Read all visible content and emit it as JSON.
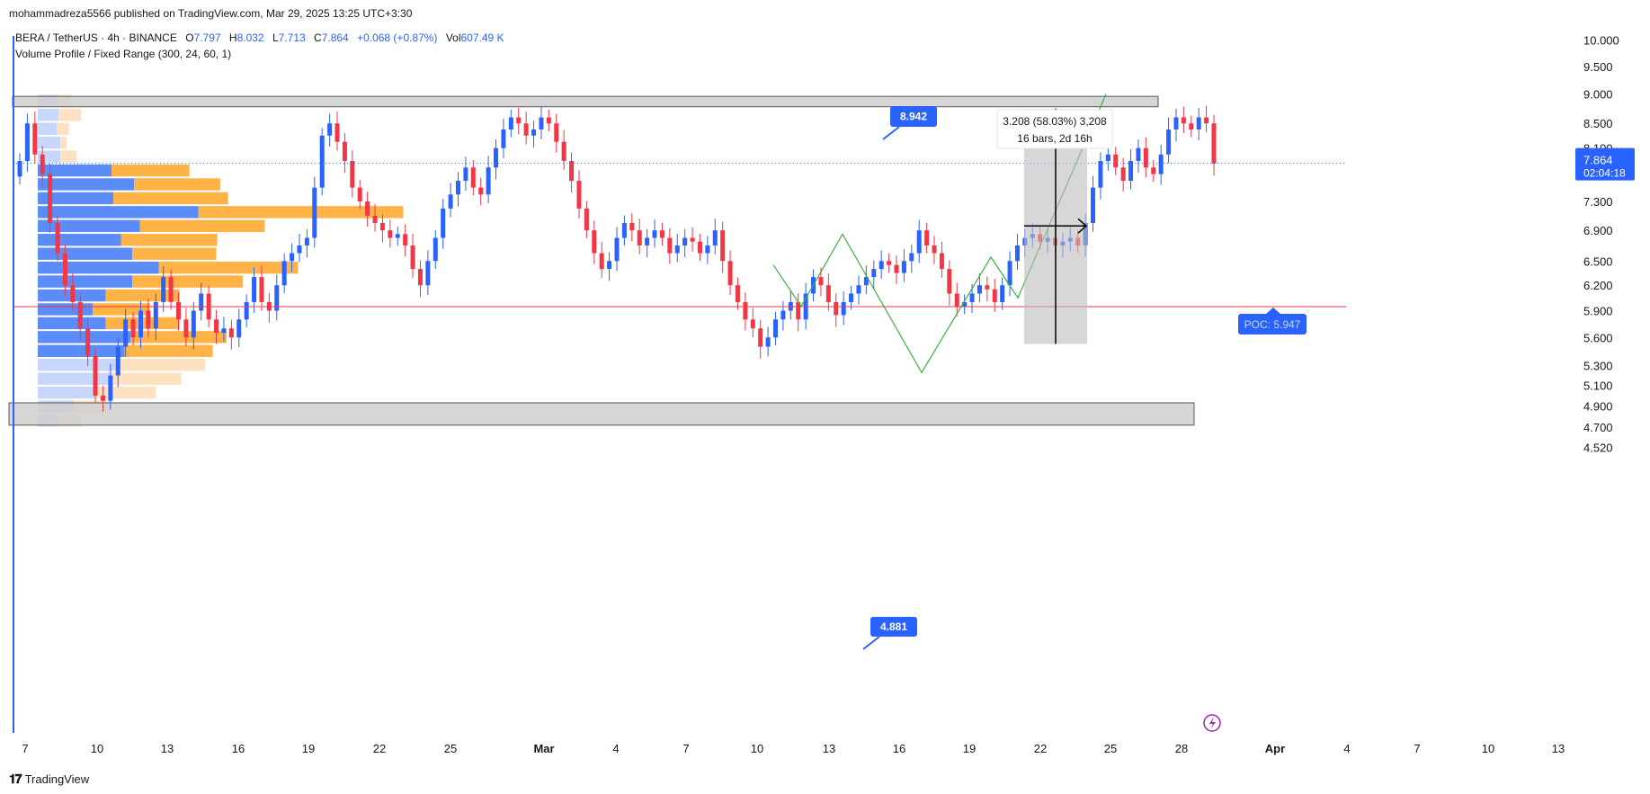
{
  "header": {
    "published": "mohammadreza5566 published on TradingView.com, Mar 29, 2025 13:25 UTC+3:30"
  },
  "legend": {
    "symbol": "BERA / TetherUS · 4h · BINANCE",
    "o_label": "O",
    "o_value": "7.797",
    "h_label": "H",
    "h_value": "8.032",
    "l_label": "L",
    "l_value": "7.713",
    "c_label": "C",
    "c_value": "7.864",
    "change": "+0.068 (+0.87%)",
    "vol_label": "Vol",
    "vol_value": "607.49 K",
    "indicator": "Volume Profile / Fixed Range (300, 24, 60, 1)"
  },
  "footer": {
    "brand": "TradingView"
  },
  "colors": {
    "bull": "#2962ff",
    "bear": "#f23645",
    "bull_vol": "#5b8cf7",
    "bear_vol": "#ffb347",
    "bull_vol_light": "#c9d6fb",
    "bear_vol_light": "#fde2c1",
    "poc": "#f23645",
    "zone": "#cfcfcf",
    "pattern": "#3cb043",
    "badge": "#2962ff"
  },
  "chart_data": {
    "type": "candlestick",
    "title": "BERA / TetherUS · 4h · BINANCE",
    "y_axis_ticks": [
      "10.000",
      "9.500",
      "9.000",
      "8.500",
      "8.100",
      "7.300",
      "6.900",
      "6.500",
      "6.200",
      "5.900",
      "5.600",
      "5.300",
      "5.100",
      "4.900",
      "4.700",
      "4.520"
    ],
    "x_axis_ticks": [
      "7",
      "10",
      "13",
      "16",
      "19",
      "22",
      "25",
      "Mar",
      "4",
      "7",
      "10",
      "13",
      "16",
      "19",
      "22",
      "25",
      "28",
      "Apr",
      "4",
      "7",
      "10",
      "13"
    ],
    "scale": "logarithmic",
    "last_price": "7.864",
    "countdown": "02:04:18",
    "poc_label": "POC: 5.947",
    "poc_value": 5.947,
    "resistance_label": "8.942",
    "resistance_zone": [
      8.78,
      8.96
    ],
    "support_label": "4.881",
    "support_zone": [
      4.72,
      4.93
    ],
    "measure_label_1": "3.208 (58.03%) 3,208",
    "measure_label_2": "16 bars, 2d 16h",
    "measure_range": [
      5.53,
      8.74
    ],
    "volume_profile": {
      "price_range": [
        4.7,
        9.0
      ],
      "rows": [
        {
          "buy": 0.11,
          "sell": 0.06
        },
        {
          "buy": 0.11,
          "sell": 0.11
        },
        {
          "buy": 0.1,
          "sell": 0.06
        },
        {
          "buy": 0.12,
          "sell": 0.03
        },
        {
          "buy": 0.12,
          "sell": 0.08
        },
        {
          "buy": 0.39,
          "sell": 0.38
        },
        {
          "buy": 0.51,
          "sell": 0.42
        },
        {
          "buy": 0.4,
          "sell": 0.56
        },
        {
          "buy": 0.85,
          "sell": 1.0
        },
        {
          "buy": 0.54,
          "sell": 0.61
        },
        {
          "buy": 0.44,
          "sell": 0.47
        },
        {
          "buy": 0.5,
          "sell": 0.41
        },
        {
          "buy": 0.64,
          "sell": 0.68
        },
        {
          "buy": 0.5,
          "sell": 0.54
        },
        {
          "buy": 0.36,
          "sell": 0.36
        },
        {
          "buy": 0.29,
          "sell": 0.28
        },
        {
          "buy": 0.36,
          "sell": 0.36
        },
        {
          "buy": 0.49,
          "sell": 0.47
        },
        {
          "buy": 0.46,
          "sell": 0.43
        },
        {
          "buy": 0.42,
          "sell": 0.43
        },
        {
          "buy": 0.38,
          "sell": 0.35
        },
        {
          "buy": 0.31,
          "sell": 0.29
        },
        {
          "buy": 0.19,
          "sell": 0.18
        },
        {
          "buy": 0.11,
          "sell": 0.11
        }
      ]
    },
    "series": [
      {
        "close": [
          7.9,
          8.5,
          8.0,
          7.7,
          7.0,
          6.6,
          6.2,
          6.0,
          5.7,
          5.4,
          5.0,
          4.95,
          5.2,
          5.5,
          5.8,
          5.6,
          5.9,
          5.7,
          6.0,
          6.3,
          6.0,
          5.8,
          5.6,
          5.9,
          6.1,
          5.8,
          5.65,
          5.7,
          5.6,
          5.8,
          6.0,
          6.3,
          6.0,
          5.9,
          6.2,
          6.5,
          6.6,
          6.7,
          6.8,
          7.5,
          8.3,
          8.5,
          8.2,
          7.9,
          7.5,
          7.3,
          7.1,
          7.0,
          6.9,
          6.8,
          6.85,
          6.7,
          6.4,
          6.2,
          6.5,
          6.8,
          7.2,
          7.4,
          7.6,
          7.8,
          7.5,
          7.4,
          7.8,
          8.1,
          8.4,
          8.6,
          8.5,
          8.3,
          8.4,
          8.6,
          8.5,
          8.2,
          7.9,
          7.6,
          7.2,
          6.9,
          6.6,
          6.4,
          6.5,
          6.8,
          7.0,
          6.9,
          6.7,
          6.8,
          6.9,
          6.8,
          6.6,
          6.7,
          6.8,
          6.75,
          6.6,
          6.7,
          6.9,
          6.5,
          6.2,
          6.0,
          5.8,
          5.7,
          5.5,
          5.6,
          5.8,
          5.9,
          6.0,
          5.8,
          6.1,
          6.3,
          6.2,
          6.0,
          5.85,
          6.0,
          6.1,
          6.2,
          6.3,
          6.4,
          6.5,
          6.45,
          6.35,
          6.5,
          6.6,
          6.9,
          6.7,
          6.6,
          6.4,
          6.1,
          5.95,
          6.0,
          6.1,
          6.2,
          6.15,
          6.0,
          6.2,
          6.5,
          6.7,
          6.8,
          6.85,
          6.75,
          6.8,
          6.7,
          6.75,
          6.8,
          6.7,
          7.0,
          7.5,
          7.9,
          8.0,
          7.8,
          7.6,
          7.9,
          8.1,
          7.8,
          7.7,
          8.0,
          8.4,
          8.6,
          8.5,
          8.4,
          8.6,
          8.5,
          7.86
        ]
      }
    ]
  }
}
